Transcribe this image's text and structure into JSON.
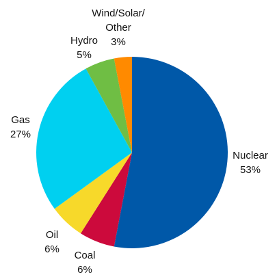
{
  "chart_data": {
    "type": "pie",
    "title": "",
    "slices": [
      {
        "label_lines": [
          "Nuclear"
        ],
        "value": 53,
        "value_label": "53%",
        "color": "#0058a8"
      },
      {
        "label_lines": [
          "Coal"
        ],
        "value": 6,
        "value_label": "6%",
        "color": "#cc0a3c"
      },
      {
        "label_lines": [
          "Oil"
        ],
        "value": 6,
        "value_label": "6%",
        "color": "#f7d92a"
      },
      {
        "label_lines": [
          "Gas"
        ],
        "value": 27,
        "value_label": "27%",
        "color": "#00d0f0"
      },
      {
        "label_lines": [
          "Hydro"
        ],
        "value": 5,
        "value_label": "5%",
        "color": "#6fbe44"
      },
      {
        "label_lines": [
          "Wind/Solar/",
          "Other"
        ],
        "value": 3,
        "value_label": "3%",
        "color": "#ff8a00"
      }
    ]
  }
}
